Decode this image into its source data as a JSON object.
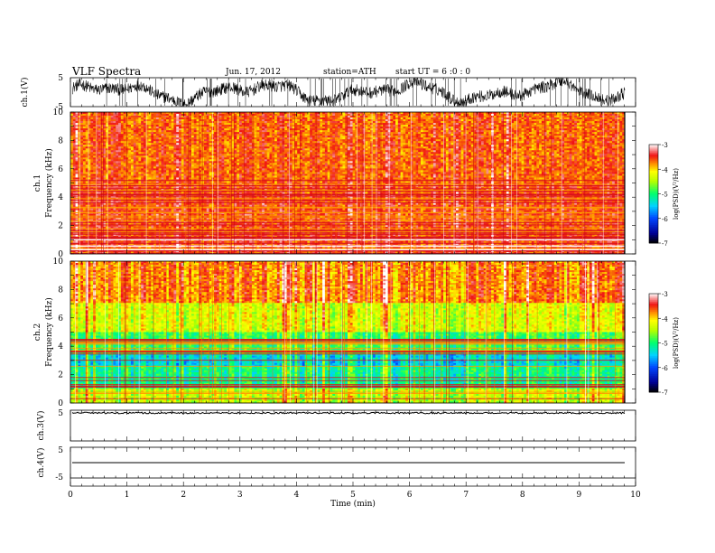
{
  "header": {
    "title": "VLF  Spectra",
    "date": "Jun. 17, 2012",
    "station": "station=ATH",
    "start": "start  UT  =    6  :0  : 0"
  },
  "chart_data": [
    {
      "type": "line",
      "panel": "ch1",
      "ylabel": "ch.1(V)",
      "ylim": [
        -5,
        5
      ],
      "yticks": [
        "5",
        "-5"
      ],
      "xlim": [
        0,
        10
      ],
      "pattern": "noisy waveform oscillating between about -5 and 5 V"
    },
    {
      "type": "heatmap",
      "panel": "ch1-spectrogram",
      "ylabel": [
        "ch.1",
        "Frequency  (kHz)"
      ],
      "ylim": [
        0,
        10
      ],
      "yticks": [
        "0",
        "2",
        "4",
        "6",
        "8",
        "10"
      ],
      "xlim": [
        0,
        9.8
      ],
      "colorbar": {
        "label": "log(PSD)(V²/Hz)",
        "range": [
          -7,
          -3
        ],
        "ticks": [
          "-3",
          "-4",
          "-5",
          "-6",
          "-7"
        ]
      },
      "dominant_level": -3.6
    },
    {
      "type": "heatmap",
      "panel": "ch2-spectrogram",
      "ylabel": [
        "ch.2",
        "Frequency  (kHz)"
      ],
      "ylim": [
        0,
        10
      ],
      "yticks": [
        "0",
        "2",
        "4",
        "6",
        "8",
        "10"
      ],
      "xlim": [
        0,
        9.8
      ],
      "colorbar": {
        "label": "log(PSD)(V²/Hz)",
        "range": [
          -7,
          -3
        ],
        "ticks": [
          "-3",
          "-4",
          "-5",
          "-6",
          "-7"
        ]
      },
      "dominant_level": -4.6
    },
    {
      "type": "line",
      "panel": "ch3",
      "ylabel": "ch.3(V)",
      "ylim": [
        -5,
        5
      ],
      "yticks": [
        "5"
      ],
      "level": 4.5
    },
    {
      "type": "line",
      "panel": "ch4",
      "ylabel": "ch.4(V)",
      "ylim": [
        -5,
        5
      ],
      "yticks": [
        "5",
        "-5"
      ],
      "level": 0
    },
    {
      "type": "axis",
      "xlabel": "Time  (min)",
      "xticks": [
        "0",
        "1",
        "2",
        "3",
        "4",
        "5",
        "6",
        "7",
        "8",
        "9",
        "10"
      ],
      "xlim": [
        0,
        10
      ]
    }
  ]
}
